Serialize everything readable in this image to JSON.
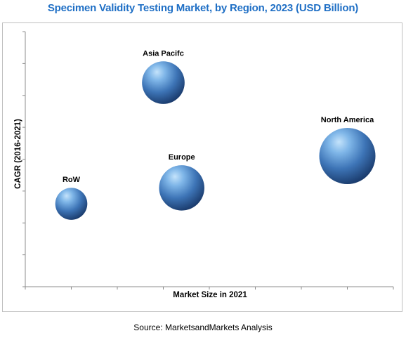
{
  "chart_data": {
    "type": "bubble",
    "title": "Specimen Validity Testing Market, by Region, 2023 (USD Billion)",
    "xlabel": "Market Size in 2021",
    "ylabel": "CAGR (2016-2021)",
    "source": "Source: MarketsandMarkets Analysis",
    "axis_values_shown": false,
    "grid": false,
    "legend": "none",
    "series": [
      {
        "name": "Asia Pacifc",
        "x": 3.0,
        "y": 6.4,
        "size": 2.3
      },
      {
        "name": "North America",
        "x": 7.0,
        "y": 4.1,
        "size": 4.0
      },
      {
        "name": "Europe",
        "x": 3.4,
        "y": 3.1,
        "size": 2.6
      },
      {
        "name": "RoW",
        "x": 1.0,
        "y": 2.6,
        "size": 1.3
      }
    ],
    "xlim": [
      0,
      8
    ],
    "ylim": [
      0,
      8
    ],
    "colors": {
      "bubble_light": "#a9d2f5",
      "bubble_mid": "#4a86c8",
      "bubble_dark": "#1c3f73",
      "title": "#1f6fc5",
      "axis": "#8c8c8c"
    }
  }
}
